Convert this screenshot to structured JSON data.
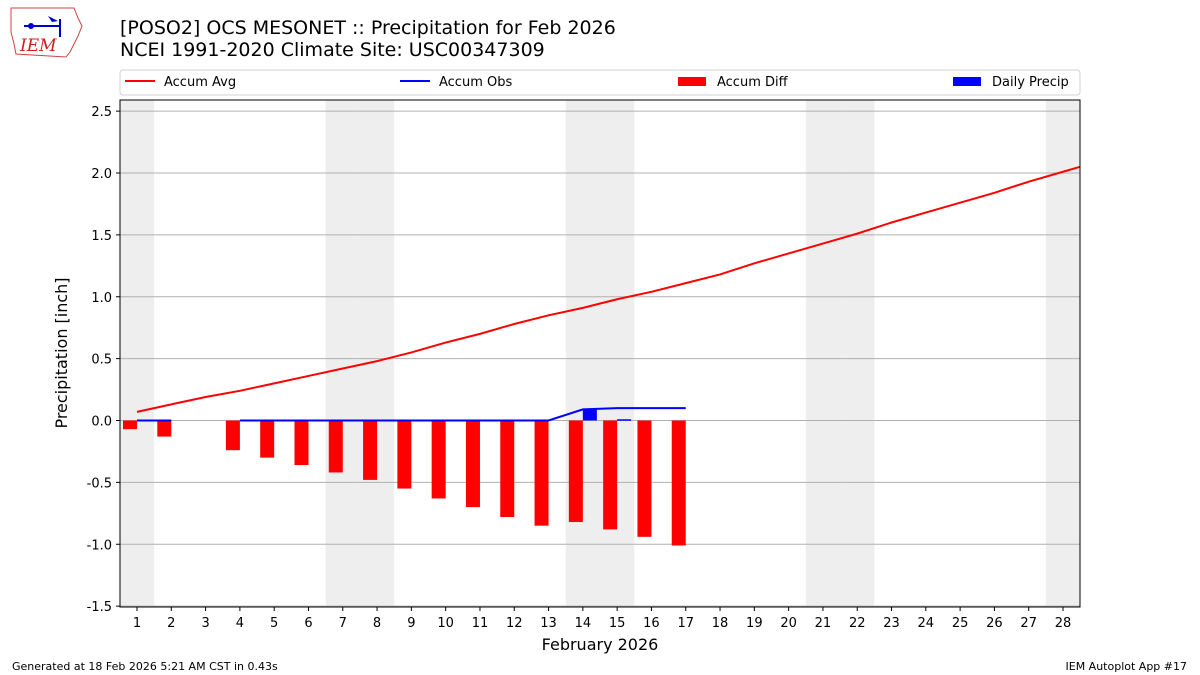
{
  "title_line1": "[POSO2] OCS MESONET :: Precipitation for Feb 2026",
  "title_line2": "NCEI 1991-2020 Climate Site: USC00347309",
  "footer_left": "Generated at 18 Feb 2026 5:21 AM CST in 0.43s",
  "footer_right": "IEM Autoplot App #17",
  "logo_text": "IEM",
  "chart_data": {
    "type": "bar+line",
    "xlabel": "February 2026",
    "ylabel": "Precipitation [inch]",
    "ylim": [
      -1.52,
      2.6
    ],
    "yticks": [
      -1.5,
      -1.0,
      -0.5,
      0.0,
      0.5,
      1.0,
      1.5,
      2.0,
      2.5
    ],
    "x": [
      1,
      2,
      3,
      4,
      5,
      6,
      7,
      8,
      9,
      10,
      11,
      12,
      13,
      14,
      15,
      16,
      17,
      18,
      19,
      20,
      21,
      22,
      23,
      24,
      25,
      26,
      27,
      28
    ],
    "weekend_days": [
      1,
      7,
      8,
      14,
      15,
      21,
      22,
      28
    ],
    "grid": "horizontal",
    "legend_position": "top",
    "series": [
      {
        "name": "Accum Avg",
        "kind": "line",
        "color": "#ff0000",
        "values": [
          0.07,
          0.13,
          0.19,
          0.24,
          0.3,
          0.36,
          0.42,
          0.48,
          0.55,
          0.63,
          0.7,
          0.78,
          0.85,
          0.91,
          0.98,
          1.04,
          1.11,
          1.18,
          1.27,
          1.35,
          1.43,
          1.51,
          1.6,
          1.68,
          1.76,
          1.84,
          1.93,
          2.01
        ]
      },
      {
        "name": "Accum Obs",
        "kind": "line",
        "color": "#0000ff",
        "values": [
          0.0,
          0.0,
          null,
          0.0,
          0.0,
          0.0,
          0.0,
          0.0,
          0.0,
          0.0,
          0.0,
          0.0,
          0.0,
          0.09,
          0.1,
          0.1,
          0.1,
          null,
          null,
          null,
          null,
          null,
          null,
          null,
          null,
          null,
          null,
          null
        ]
      },
      {
        "name": "Accum Diff",
        "kind": "bar",
        "color": "#ff0000",
        "values": [
          -0.07,
          -0.13,
          null,
          -0.24,
          -0.3,
          -0.36,
          -0.42,
          -0.48,
          -0.55,
          -0.63,
          -0.7,
          -0.78,
          -0.85,
          -0.82,
          -0.88,
          -0.94,
          -1.01,
          null,
          null,
          null,
          null,
          null,
          null,
          null,
          null,
          null,
          null,
          null
        ]
      },
      {
        "name": "Daily Precip",
        "kind": "bar",
        "color": "#0000ff",
        "values": [
          0,
          0,
          null,
          0,
          0,
          0,
          0,
          0,
          0,
          0,
          0,
          0,
          0,
          0.09,
          0.01,
          0,
          0,
          null,
          null,
          null,
          null,
          null,
          null,
          null,
          null,
          null,
          null,
          null
        ]
      }
    ]
  }
}
